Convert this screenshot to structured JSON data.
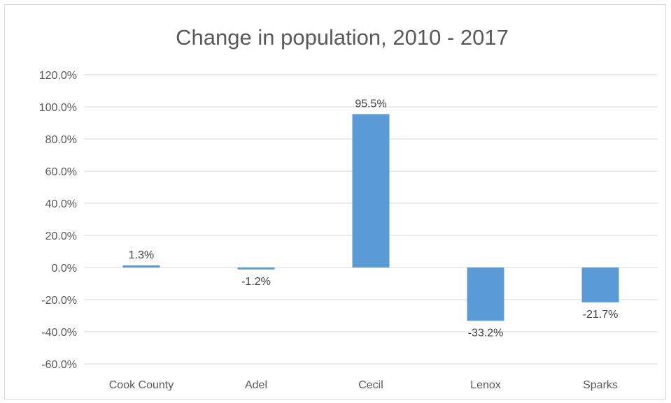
{
  "chart_data": {
    "type": "bar",
    "title": "Change in population, 2010 - 2017",
    "xlabel": "",
    "ylabel": "",
    "categories": [
      "Cook County",
      "Adel",
      "Cecil",
      "Lenox",
      "Sparks"
    ],
    "values": [
      1.3,
      -1.2,
      95.5,
      -33.2,
      -21.7
    ],
    "data_labels": [
      "1.3%",
      "-1.2%",
      "95.5%",
      "-33.2%",
      "-21.7%"
    ],
    "ylim": [
      -60,
      120
    ],
    "yticks": [
      120,
      100,
      80,
      60,
      40,
      20,
      0,
      -20,
      -40,
      -60
    ],
    "ytick_labels": [
      "120.0%",
      "100.0%",
      "80.0%",
      "60.0%",
      "40.0%",
      "20.0%",
      "0.0%",
      "-20.0%",
      "-40.0%",
      "-60.0%"
    ],
    "grid": true,
    "legend": "none",
    "colors": {
      "bar": "#5b9bd5",
      "grid": "#d9d9d9",
      "text": "#595959"
    }
  }
}
